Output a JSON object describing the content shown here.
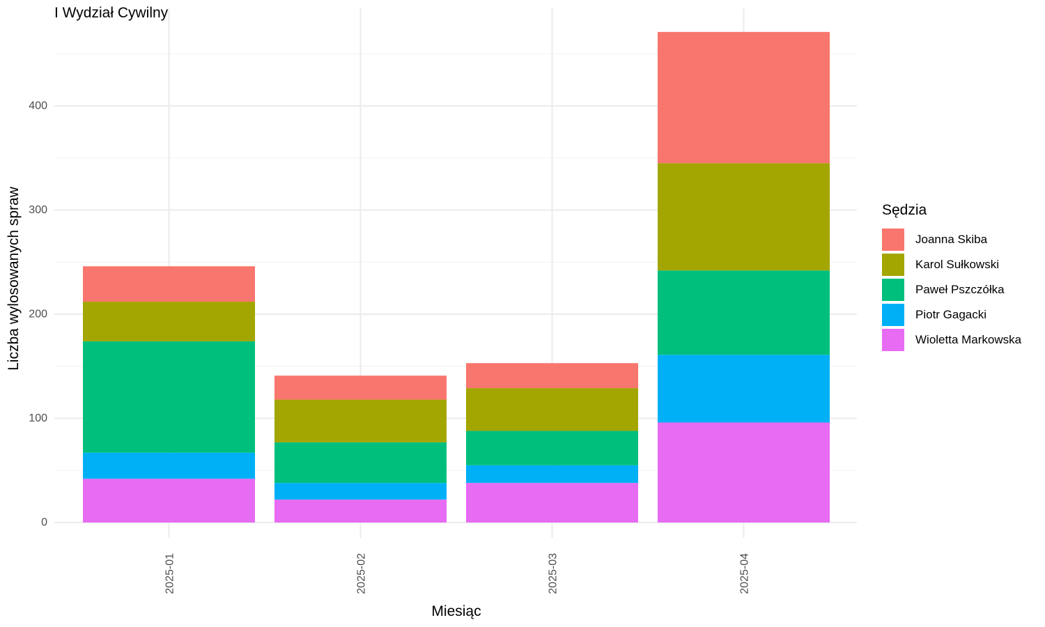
{
  "chart_data": {
    "type": "bar",
    "stacked": true,
    "title": "I Wydział Cywilny",
    "xlabel": "Miesiąc",
    "ylabel": "Liczba wylosowanych spraw",
    "categories": [
      "2025-01",
      "2025-02",
      "2025-03",
      "2025-04"
    ],
    "ylim": [
      0,
      480
    ],
    "yticks": [
      0,
      100,
      200,
      300,
      400
    ],
    "grid": true,
    "legend": {
      "title": "Sędzia",
      "position": "right"
    },
    "series": [
      {
        "name": "Wioletta Markowska",
        "color": "#E76BF3",
        "values": [
          42,
          22,
          38,
          96
        ]
      },
      {
        "name": "Piotr Gagacki",
        "color": "#00B0F6",
        "values": [
          25,
          16,
          17,
          65
        ]
      },
      {
        "name": "Paweł Pszczółka",
        "color": "#00BF7D",
        "values": [
          107,
          39,
          33,
          81
        ]
      },
      {
        "name": "Karol Sułkowski",
        "color": "#A3A500",
        "values": [
          38,
          41,
          41,
          103
        ]
      },
      {
        "name": "Joanna Skiba",
        "color": "#F8766D",
        "values": [
          34,
          23,
          24,
          126
        ]
      }
    ]
  }
}
